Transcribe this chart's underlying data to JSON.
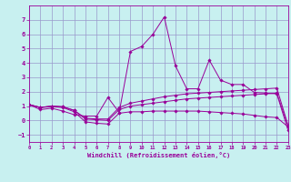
{
  "background_color": "#c8f0f0",
  "line_color": "#990099",
  "grid_color": "#9999cc",
  "x_min": 0,
  "x_max": 23,
  "y_min": -1.5,
  "y_max": 8,
  "xlabel": "Windchill (Refroidissement éolien,°C)",
  "x_ticks": [
    0,
    1,
    2,
    3,
    4,
    5,
    6,
    7,
    8,
    9,
    10,
    11,
    12,
    13,
    14,
    15,
    16,
    17,
    18,
    19,
    20,
    21,
    22,
    23
  ],
  "y_ticks": [
    -1,
    0,
    1,
    2,
    3,
    4,
    5,
    6,
    7
  ],
  "series": [
    {
      "x": [
        0,
        1,
        2,
        3,
        4,
        5,
        6,
        7,
        8,
        9,
        10,
        11,
        12,
        13,
        14,
        15,
        16,
        17,
        18,
        19,
        20,
        21,
        22,
        23
      ],
      "y": [
        1.1,
        0.75,
        0.85,
        0.65,
        0.4,
        0.3,
        0.3,
        1.6,
        0.55,
        4.8,
        5.15,
        6.0,
        7.2,
        3.8,
        2.2,
        2.2,
        4.2,
        2.8,
        2.5,
        2.5,
        1.95,
        1.9,
        1.85,
        -0.7
      ]
    },
    {
      "x": [
        0,
        1,
        2,
        3,
        4,
        5,
        6,
        7,
        8,
        9,
        10,
        11,
        12,
        13,
        14,
        15,
        16,
        17,
        18,
        19,
        20,
        21,
        22,
        23
      ],
      "y": [
        1.1,
        0.9,
        0.95,
        0.9,
        0.6,
        -0.1,
        -0.2,
        -0.25,
        0.5,
        0.6,
        0.6,
        0.65,
        0.65,
        0.65,
        0.65,
        0.65,
        0.6,
        0.55,
        0.5,
        0.45,
        0.35,
        0.25,
        0.2,
        -0.45
      ]
    },
    {
      "x": [
        0,
        1,
        2,
        3,
        4,
        5,
        6,
        7,
        8,
        9,
        10,
        11,
        12,
        13,
        14,
        15,
        16,
        17,
        18,
        19,
        20,
        21,
        22,
        23
      ],
      "y": [
        1.1,
        0.9,
        1.0,
        0.95,
        0.7,
        0.1,
        0.05,
        0.0,
        0.75,
        1.0,
        1.1,
        1.2,
        1.3,
        1.4,
        1.5,
        1.55,
        1.6,
        1.65,
        1.7,
        1.75,
        1.8,
        1.85,
        1.9,
        -0.4
      ]
    },
    {
      "x": [
        0,
        1,
        2,
        3,
        4,
        5,
        6,
        7,
        8,
        9,
        10,
        11,
        12,
        13,
        14,
        15,
        16,
        17,
        18,
        19,
        20,
        21,
        22,
        23
      ],
      "y": [
        1.1,
        0.9,
        1.0,
        0.95,
        0.7,
        0.15,
        0.1,
        0.1,
        0.9,
        1.2,
        1.35,
        1.5,
        1.65,
        1.75,
        1.85,
        1.9,
        1.95,
        2.0,
        2.05,
        2.1,
        2.15,
        2.2,
        2.25,
        -0.35
      ]
    }
  ]
}
